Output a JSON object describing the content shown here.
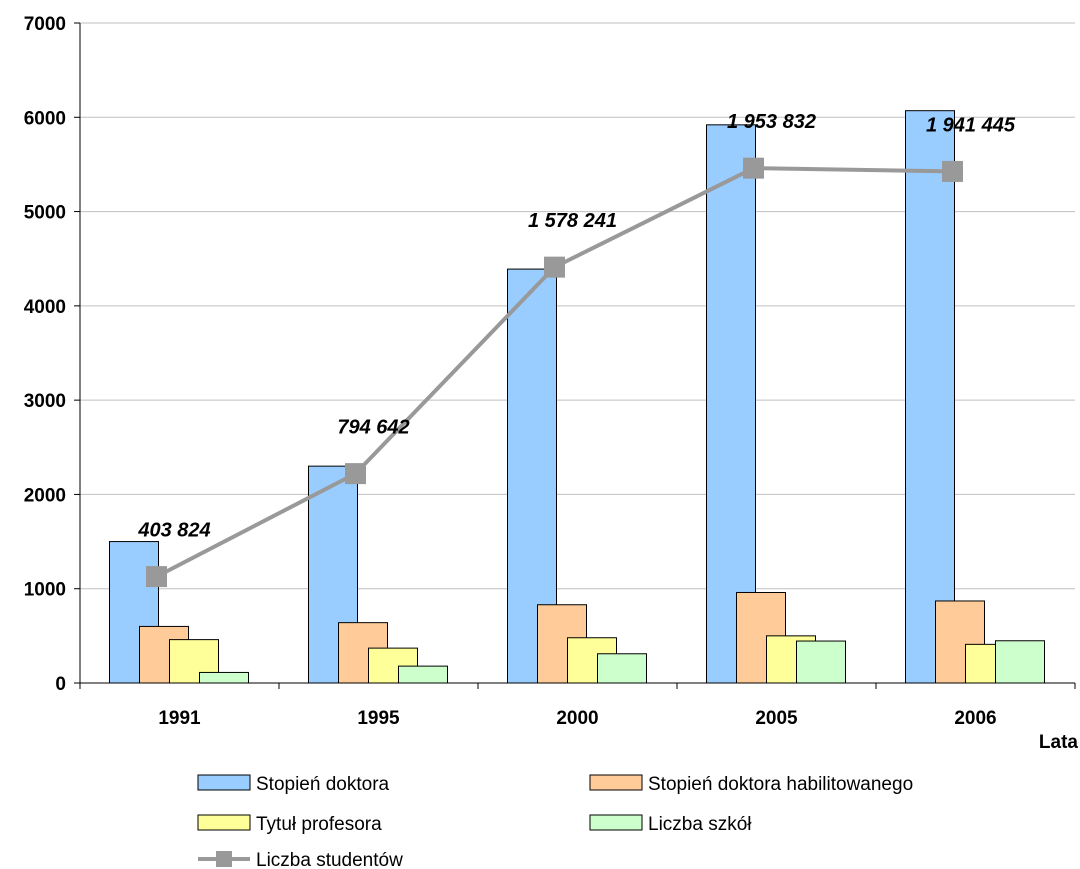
{
  "chart_data": {
    "type": "bar",
    "categories": [
      "1991",
      "1995",
      "2000",
      "2005",
      "2006"
    ],
    "xlabel": "Lata",
    "ylabel": "",
    "ylim": [
      0,
      7000
    ],
    "yticks": [
      0,
      1000,
      2000,
      3000,
      4000,
      5000,
      6000,
      7000
    ],
    "grid": true,
    "legend_position": "bottom",
    "series": [
      {
        "name": "Stopień doktora",
        "type": "bar",
        "color": "#99ccff",
        "values": [
          1500,
          2300,
          4390,
          5920,
          6070
        ]
      },
      {
        "name": "Stopień doktora habilitowanego",
        "type": "bar",
        "color": "#ffcc99",
        "values": [
          600,
          640,
          830,
          960,
          870
        ]
      },
      {
        "name": "Tytuł profesora",
        "type": "bar",
        "color": "#ffff99",
        "values": [
          460,
          370,
          480,
          500,
          410
        ]
      },
      {
        "name": "Liczba szkół",
        "type": "bar",
        "color": "#ccffcc",
        "values": [
          112,
          179,
          310,
          445,
          448
        ]
      },
      {
        "name": "Liczba studentów",
        "type": "line",
        "color": "#999999",
        "values": [
          403824,
          794642,
          1578241,
          1953832,
          1941445
        ],
        "data_labels": [
          "403 824",
          "794 642",
          "1 578 241",
          "1 953 832",
          "1 941 445"
        ]
      }
    ]
  }
}
